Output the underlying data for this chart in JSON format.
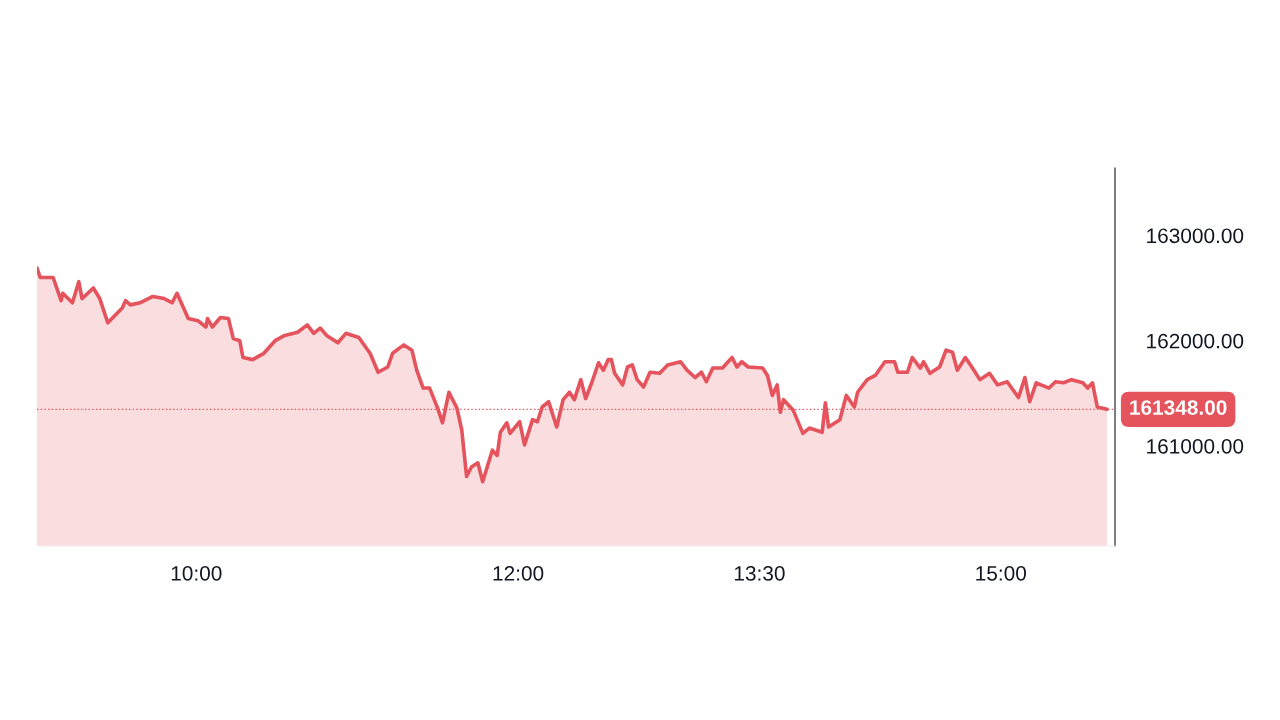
{
  "chart_data": {
    "type": "area",
    "x": [
      9.01,
      9.03,
      9.11,
      9.16,
      9.17,
      9.23,
      9.27,
      9.29,
      9.36,
      9.4,
      9.45,
      9.54,
      9.56,
      9.59,
      9.65,
      9.73,
      9.8,
      9.85,
      9.88,
      9.95,
      10.01,
      10.06,
      10.07,
      10.1,
      10.15,
      10.2,
      10.23,
      10.27,
      10.29,
      10.35,
      10.42,
      10.49,
      10.55,
      10.63,
      10.69,
      10.73,
      10.77,
      10.81,
      10.88,
      10.93,
      11.01,
      11.08,
      11.13,
      11.19,
      11.22,
      11.29,
      11.34,
      11.37,
      11.41,
      11.45,
      11.5,
      11.53,
      11.57,
      11.62,
      11.65,
      11.68,
      11.71,
      11.75,
      11.78,
      11.84,
      11.87,
      11.89,
      11.93,
      11.95,
      12.01,
      12.04,
      12.09,
      12.12,
      12.15,
      12.19,
      12.24,
      12.28,
      12.32,
      12.35,
      12.39,
      12.42,
      12.46,
      12.5,
      12.53,
      12.56,
      12.58,
      12.6,
      12.65,
      12.68,
      12.71,
      12.74,
      12.78,
      12.82,
      12.88,
      12.93,
      13.01,
      13.05,
      13.1,
      13.14,
      13.17,
      13.21,
      13.27,
      13.33,
      13.36,
      13.39,
      13.43,
      13.52,
      13.55,
      13.58,
      13.61,
      13.63,
      13.65,
      13.71,
      13.77,
      13.81,
      13.89,
      13.91,
      13.93,
      14.0,
      14.04,
      14.09,
      14.11,
      14.17,
      14.22,
      14.28,
      14.34,
      14.36,
      14.42,
      14.45,
      14.5,
      14.52,
      14.56,
      14.62,
      14.66,
      14.7,
      14.73,
      14.78,
      14.82,
      14.87,
      14.93,
      14.98,
      15.04,
      15.11,
      15.15,
      15.18,
      15.22,
      15.3,
      15.34,
      15.39,
      15.44,
      15.51,
      15.54,
      15.57,
      15.6,
      15.66
    ],
    "series": [
      {
        "color": "#e5535d",
        "values": [
          162690,
          162600,
          162600,
          162380,
          162450,
          162360,
          162560,
          162400,
          162500,
          162400,
          162170,
          162310,
          162380,
          162340,
          162360,
          162420,
          162400,
          162360,
          162450,
          162210,
          162190,
          162130,
          162210,
          162130,
          162220,
          162210,
          162020,
          162000,
          161840,
          161820,
          161880,
          162000,
          162050,
          162080,
          162150,
          162070,
          162120,
          162050,
          161980,
          162070,
          162030,
          161880,
          161700,
          161750,
          161880,
          161960,
          161910,
          161720,
          161550,
          161550,
          161360,
          161220,
          161510,
          161360,
          161150,
          160710,
          160800,
          160840,
          160660,
          160960,
          160910,
          161130,
          161220,
          161120,
          161230,
          161010,
          161250,
          161230,
          161370,
          161420,
          161180,
          161440,
          161510,
          161440,
          161630,
          161450,
          161610,
          161790,
          161720,
          161820,
          161820,
          161690,
          161580,
          161750,
          161770,
          161630,
          161560,
          161700,
          161690,
          161770,
          161800,
          161720,
          161650,
          161700,
          161610,
          161740,
          161740,
          161840,
          161750,
          161800,
          161750,
          161740,
          161670,
          161480,
          161580,
          161320,
          161440,
          161340,
          161120,
          161170,
          161130,
          161410,
          161180,
          161250,
          161480,
          161370,
          161510,
          161630,
          161670,
          161800,
          161800,
          161700,
          161700,
          161840,
          161740,
          161800,
          161690,
          161750,
          161910,
          161890,
          161720,
          161840,
          161750,
          161630,
          161690,
          161580,
          161610,
          161460,
          161650,
          161420,
          161600,
          161550,
          161610,
          161600,
          161630,
          161600,
          161550,
          161600,
          161370,
          161348
        ]
      }
    ],
    "xlim": [
      9.01,
      15.71
    ],
    "ylim": [
      160050,
      163640
    ],
    "xticks": [
      {
        "value": 10,
        "label": "10:00"
      },
      {
        "value": 12,
        "label": "12:00"
      },
      {
        "value": 13.5,
        "label": "13:30"
      },
      {
        "value": 15,
        "label": "15:00"
      }
    ],
    "yticks": [
      {
        "value": 161000,
        "label": "161000.00"
      },
      {
        "value": 162000,
        "label": "162000.00"
      },
      {
        "value": 163000,
        "label": "163000.00"
      }
    ],
    "ref_lines": [
      {
        "axis": "y",
        "value": 161348,
        "label": "161348.00",
        "color": "#e5535d",
        "line_style": "dotted"
      }
    ],
    "grid": false,
    "legend": false
  }
}
